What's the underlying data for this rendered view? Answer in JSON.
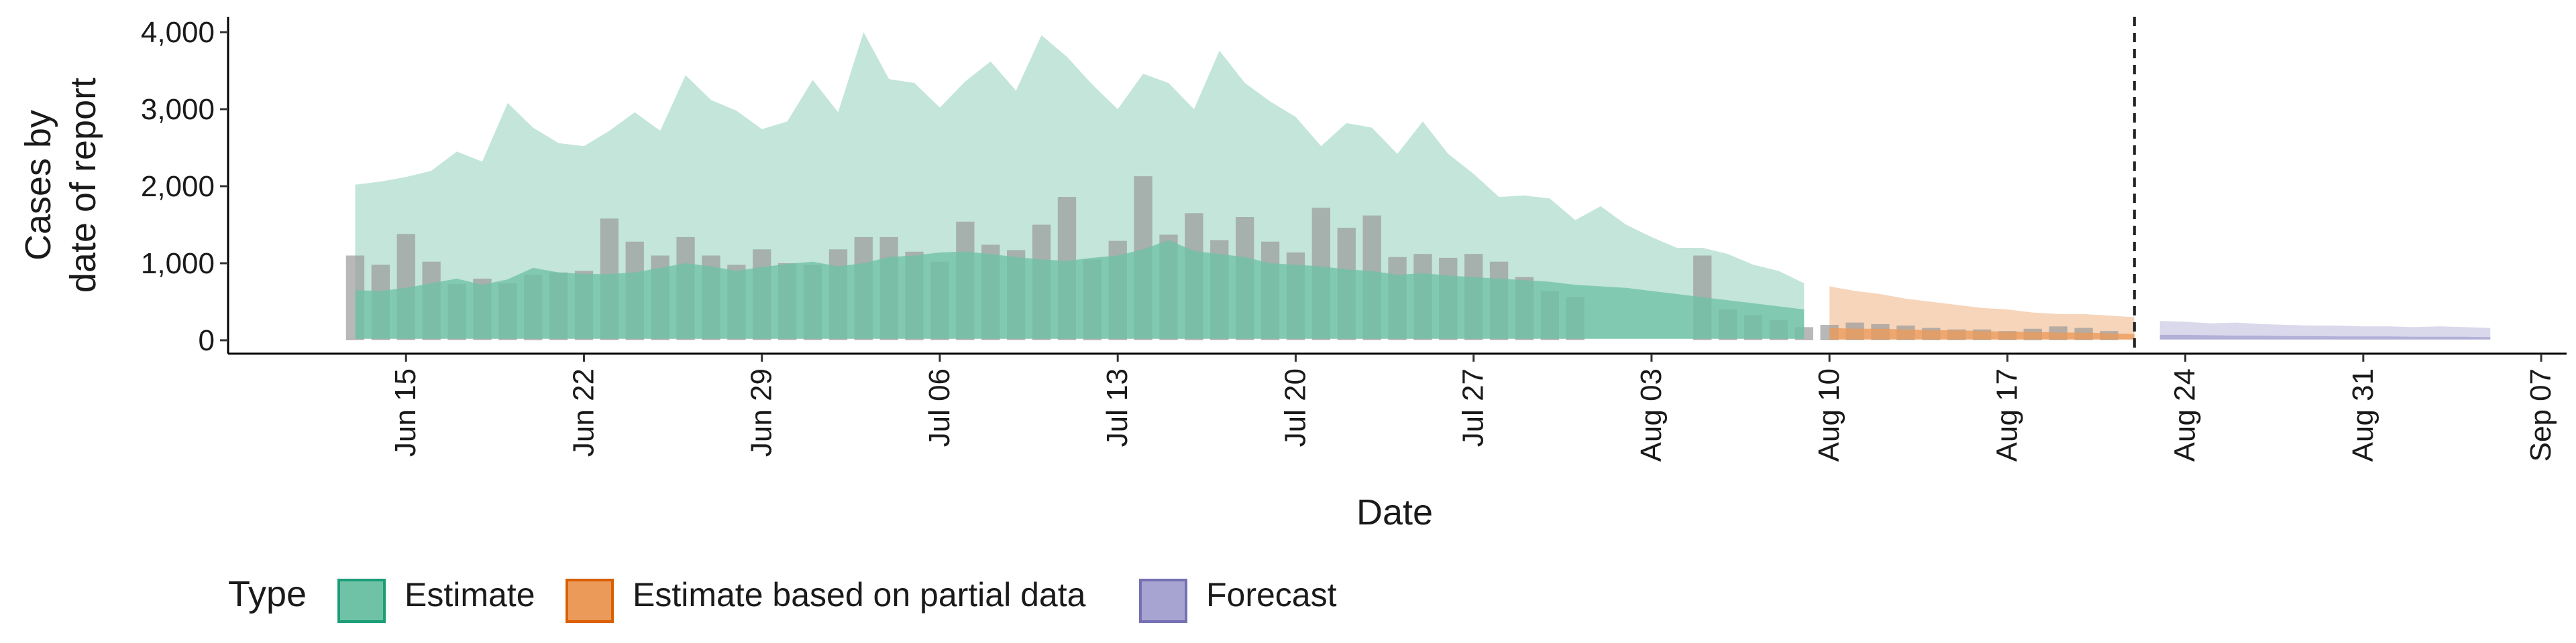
{
  "chart_data": {
    "type": "bar",
    "xlabel": "Date",
    "ylabel_lines": [
      "Cases by",
      "date of report"
    ],
    "ylim": [
      0,
      4200
    ],
    "yticks": [
      0,
      1000,
      2000,
      3000,
      4000
    ],
    "ytick_labels": [
      "0",
      "1,000",
      "2,000",
      "3,000",
      "4,000"
    ],
    "xlim": [
      "2020-06-08",
      "2020-09-08"
    ],
    "xticks": [
      "2020-06-15",
      "2020-06-22",
      "2020-06-29",
      "2020-07-06",
      "2020-07-13",
      "2020-07-20",
      "2020-07-27",
      "2020-08-03",
      "2020-08-10",
      "2020-08-17",
      "2020-08-24",
      "2020-08-31",
      "2020-09-07"
    ],
    "xtick_labels": [
      "Jun 15",
      "Jun 22",
      "Jun 29",
      "Jul 06",
      "Jul 13",
      "Jul 20",
      "Jul 27",
      "Aug 03",
      "Aug 10",
      "Aug 17",
      "Aug 24",
      "Aug 31",
      "Sep 07"
    ],
    "report_date": "2020-08-22",
    "legend": {
      "title": "Type",
      "position": "bottom",
      "items": [
        {
          "key": "estimate",
          "label": "Estimate",
          "fill": "#70c2a6",
          "stroke": "#1b9e77"
        },
        {
          "key": "partial",
          "label": "Estimate based on partial data",
          "fill": "#eb9a5a",
          "stroke": "#d95f02"
        },
        {
          "key": "forecast",
          "label": "Forecast",
          "fill": "#a8a4d2",
          "stroke": "#7570b3"
        }
      ]
    },
    "observed_cases": {
      "start": "2020-06-13",
      "color": "#9a9a9a",
      "values": [
        1100,
        980,
        1380,
        1020,
        730,
        800,
        740,
        850,
        880,
        900,
        1580,
        1280,
        1100,
        1340,
        1100,
        980,
        1180,
        1000,
        980,
        1180,
        1340,
        1340,
        1150,
        1020,
        1540,
        1240,
        1170,
        1500,
        1860,
        1050,
        1290,
        2130,
        1370,
        1650,
        1300,
        1600,
        1280,
        1140,
        1720,
        1460,
        1620,
        1080,
        1120,
        1070,
        1120,
        1020,
        820,
        640,
        560,
        0,
        0,
        0,
        0,
        1100,
        400,
        330,
        260,
        170,
        200,
        230,
        210,
        190,
        160,
        140,
        140,
        120,
        150,
        180,
        160,
        120
      ]
    },
    "estimate": {
      "start": "2020-06-13",
      "end": "2020-08-09",
      "median": [
        650,
        640,
        680,
        740,
        800,
        720,
        790,
        940,
        880,
        860,
        860,
        880,
        940,
        1000,
        960,
        900,
        950,
        990,
        1020,
        960,
        1000,
        1080,
        1100,
        1140,
        1150,
        1120,
        1080,
        1050,
        1030,
        1070,
        1100,
        1180,
        1300,
        1160,
        1120,
        1080,
        1000,
        980,
        960,
        920,
        900,
        850,
        870,
        840,
        820,
        800,
        780,
        760,
        720,
        700,
        680,
        640,
        600,
        560,
        520,
        480,
        440,
        400
      ],
      "lower": [
        20,
        20,
        20,
        20,
        20,
        20,
        20,
        20,
        20,
        20,
        20,
        20,
        20,
        20,
        20,
        20,
        20,
        20,
        20,
        20,
        20,
        20,
        20,
        20,
        20,
        20,
        20,
        20,
        20,
        20,
        20,
        20,
        20,
        20,
        20,
        20,
        20,
        20,
        20,
        20,
        20,
        20,
        20,
        20,
        20,
        20,
        20,
        20,
        20,
        20,
        20,
        20,
        20,
        20,
        20,
        20,
        20,
        20
      ],
      "upper": [
        2020,
        2060,
        2120,
        2200,
        2450,
        2320,
        3080,
        2760,
        2560,
        2520,
        2720,
        2960,
        2720,
        3440,
        3120,
        2980,
        2740,
        2840,
        3380,
        2960,
        4000,
        3390,
        3340,
        3020,
        3360,
        3620,
        3240,
        3960,
        3680,
        3320,
        3000,
        3460,
        3340,
        3000,
        3760,
        3340,
        3100,
        2900,
        2520,
        2820,
        2760,
        2420,
        2840,
        2420,
        2160,
        1860,
        1880,
        1840,
        1560,
        1740,
        1500,
        1340,
        1200,
        1200,
        1120,
        980,
        900,
        740
      ]
    },
    "partial": {
      "start": "2020-08-10",
      "end": "2020-08-22",
      "median": [
        160,
        150,
        150,
        140,
        130,
        130,
        120,
        110,
        110,
        100,
        100,
        90,
        80
      ],
      "lower": [
        10,
        10,
        10,
        10,
        10,
        10,
        10,
        10,
        10,
        10,
        10,
        10,
        10
      ],
      "upper": [
        700,
        640,
        600,
        540,
        500,
        460,
        420,
        400,
        360,
        340,
        340,
        320,
        300
      ]
    },
    "forecast": {
      "start": "2020-08-23",
      "end": "2020-09-05",
      "median": [
        70,
        70,
        65,
        60,
        60,
        55,
        55,
        50,
        50,
        50,
        45,
        45,
        45,
        40
      ],
      "lower": [
        10,
        10,
        10,
        10,
        10,
        10,
        10,
        10,
        10,
        10,
        10,
        10,
        10,
        10
      ],
      "upper": [
        250,
        240,
        220,
        230,
        210,
        200,
        190,
        190,
        180,
        180,
        170,
        180,
        170,
        160
      ]
    }
  }
}
